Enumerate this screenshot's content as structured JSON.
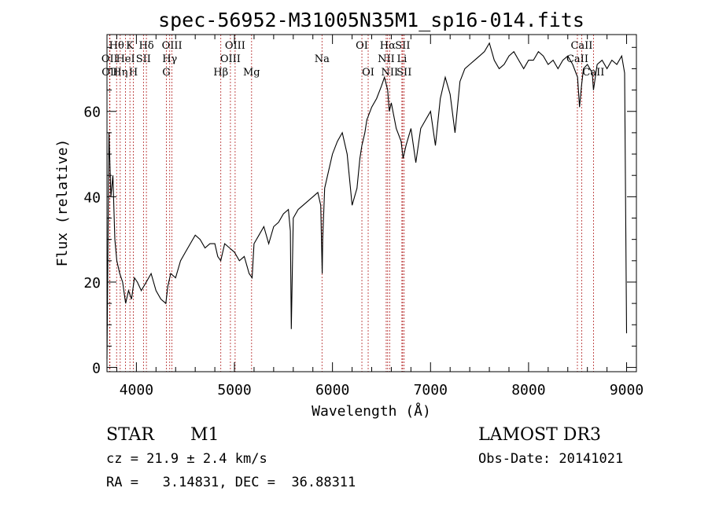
{
  "chart_data": {
    "type": "line",
    "title": "spec-56952-M31005N35M1_sp16-014.fits",
    "xlabel": "Wavelength (Å)",
    "ylabel": "Flux (relative)",
    "xlim": [
      3700,
      9100
    ],
    "ylim": [
      -1,
      78
    ],
    "xticks": [
      4000,
      5000,
      6000,
      7000,
      8000,
      9000
    ],
    "yticks": [
      0,
      20,
      40,
      60
    ],
    "grid": false,
    "series": [
      {
        "x": [
          3700,
          3720,
          3740,
          3760,
          3780,
          3800,
          3830,
          3860,
          3890,
          3920,
          3950,
          3980,
          4010,
          4050,
          4100,
          4150,
          4200,
          4250,
          4300,
          4320,
          4350,
          4400,
          4450,
          4500,
          4550,
          4600,
          4650,
          4700,
          4750,
          4800,
          4830,
          4860,
          4900,
          4950,
          5000,
          5050,
          5100,
          5150,
          5180,
          5200,
          5250,
          5300,
          5350,
          5400,
          5450,
          5500,
          5550,
          5570,
          5580,
          5600,
          5650,
          5700,
          5750,
          5800,
          5850,
          5880,
          5895,
          5900,
          5920,
          5950,
          6000,
          6050,
          6100,
          6150,
          6200,
          6250,
          6280,
          6300,
          6330,
          6350,
          6400,
          6450,
          6500,
          6530,
          6563,
          6580,
          6600,
          6650,
          6700,
          6720,
          6750,
          6800,
          6850,
          6900,
          6950,
          7000,
          7050,
          7100,
          7150,
          7200,
          7250,
          7300,
          7350,
          7400,
          7450,
          7500,
          7550,
          7600,
          7650,
          7700,
          7750,
          7800,
          7850,
          7900,
          7950,
          8000,
          8050,
          8100,
          8150,
          8200,
          8250,
          8300,
          8350,
          8400,
          8450,
          8500,
          8520,
          8540,
          8560,
          8600,
          8650,
          8662,
          8700,
          8750,
          8800,
          8850,
          8900,
          8950,
          8980,
          9000
        ],
        "y": [
          2,
          55,
          40,
          45,
          30,
          25,
          22,
          20,
          15,
          18,
          16,
          21,
          20,
          18,
          20,
          22,
          18,
          16,
          15,
          19,
          22,
          21,
          25,
          27,
          29,
          31,
          30,
          28,
          29,
          29,
          26,
          25,
          29,
          28,
          27,
          25,
          26,
          22,
          21,
          29,
          31,
          33,
          29,
          33,
          34,
          36,
          37,
          32,
          9,
          35,
          37,
          38,
          39,
          40,
          41,
          38,
          22,
          30,
          42,
          45,
          50,
          53,
          55,
          50,
          38,
          42,
          49,
          52,
          55,
          58,
          61,
          63,
          66,
          68,
          65,
          60,
          62,
          56,
          53,
          49,
          52,
          56,
          48,
          56,
          58,
          60,
          52,
          63,
          68,
          64,
          55,
          67,
          70,
          71,
          72,
          73,
          74,
          76,
          72,
          70,
          71,
          73,
          74,
          72,
          70,
          72,
          72,
          74,
          73,
          71,
          72,
          70,
          72,
          73,
          71,
          68,
          61,
          66,
          70,
          71,
          69,
          65,
          71,
          72,
          70,
          72,
          71,
          73,
          69,
          8
        ]
      }
    ],
    "lines": [
      {
        "label": "Hθ",
        "x": 3798,
        "row": 1
      },
      {
        "label": "OII",
        "x": 3727,
        "row": 2
      },
      {
        "label": "OII",
        "x": 3730,
        "row": 3
      },
      {
        "label": "Hη",
        "x": 3835,
        "row": 3
      },
      {
        "label": "K",
        "x": 3934,
        "row": 1
      },
      {
        "label": "HeI",
        "x": 3889,
        "row": 2
      },
      {
        "label": "H",
        "x": 3969,
        "row": 3
      },
      {
        "label": "SII",
        "x": 4072,
        "row": 2
      },
      {
        "label": "Hδ",
        "x": 4102,
        "row": 1
      },
      {
        "label": "OIII",
        "x": 4363,
        "row": 1
      },
      {
        "label": "Hγ",
        "x": 4340,
        "row": 2
      },
      {
        "label": "G",
        "x": 4305,
        "row": 3
      },
      {
        "label": "Hβ",
        "x": 4861,
        "row": 3
      },
      {
        "label": "OIII",
        "x": 5007,
        "row": 1
      },
      {
        "label": "OIII",
        "x": 4959,
        "row": 2
      },
      {
        "label": "Mg",
        "x": 5175,
        "row": 3
      },
      {
        "label": "Na",
        "x": 5893,
        "row": 2
      },
      {
        "label": "OI",
        "x": 6300,
        "row": 1
      },
      {
        "label": "OI",
        "x": 6364,
        "row": 3
      },
      {
        "label": "Hα",
        "x": 6563,
        "row": 1
      },
      {
        "label": "SII",
        "x": 6716,
        "row": 1
      },
      {
        "label": "NII",
        "x": 6548,
        "row": 2
      },
      {
        "label": "Li",
        "x": 6708,
        "row": 2
      },
      {
        "label": "NII",
        "x": 6583,
        "row": 3
      },
      {
        "label": "SII",
        "x": 6731,
        "row": 3
      },
      {
        "label": "CaII",
        "x": 8542,
        "row": 1
      },
      {
        "label": "CaII",
        "x": 8498,
        "row": 2
      },
      {
        "label": "CaII",
        "x": 8662,
        "row": 3
      }
    ]
  },
  "info": {
    "object_class": "STAR",
    "subclass": "M1",
    "survey": "LAMOST DR3",
    "cz": "cz = 21.9 ± 2.4 km/s",
    "obs_date": "Obs-Date: 20141021",
    "coords": "RA =   3.14831, DEC =  36.88311"
  }
}
